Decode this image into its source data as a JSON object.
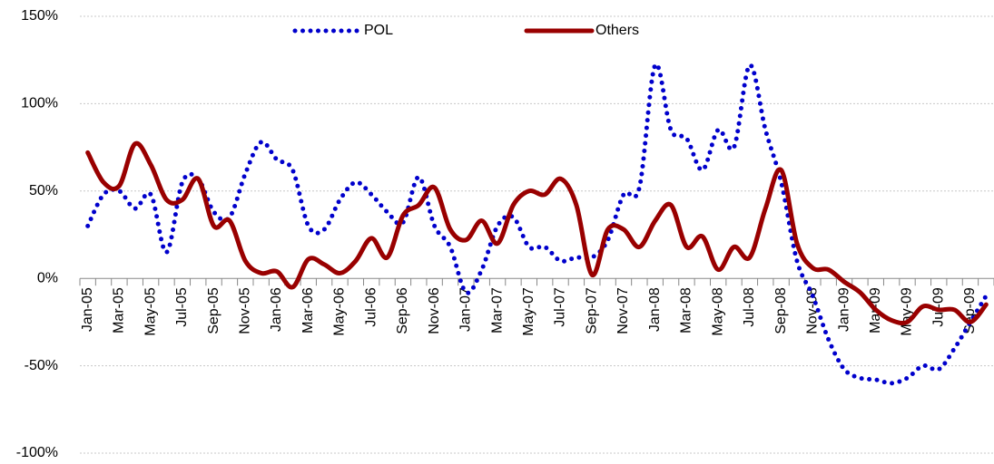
{
  "chart_data": {
    "type": "line",
    "categories": [
      "Jan-05",
      null,
      "Mar-05",
      null,
      "May-05",
      null,
      "Jul-05",
      null,
      "Sep-05",
      null,
      "Nov-05",
      null,
      "Jan-06",
      null,
      "Mar-06",
      null,
      "May-06",
      null,
      "Jul-06",
      null,
      "Sep-06",
      null,
      "Nov-06",
      null,
      "Jan-07",
      null,
      "Mar-07",
      null,
      "May-07",
      null,
      "Jul-07",
      null,
      "Sep-07",
      null,
      "Nov-07",
      null,
      "Jan-08",
      null,
      "Mar-08",
      null,
      "May-08",
      null,
      "Jul-08",
      null,
      "Sep-08",
      null,
      "Nov-08",
      null,
      "Jan-09",
      null,
      "Mar-09",
      null,
      "May-09",
      null,
      "Jul-09",
      null,
      "Sep-09",
      null
    ],
    "series": [
      {
        "name": "POL",
        "color": "#0000cc",
        "style": "dotted",
        "values": [
          30,
          48,
          50,
          40,
          48,
          15,
          55,
          57,
          38,
          35,
          60,
          78,
          68,
          62,
          30,
          28,
          45,
          55,
          48,
          38,
          32,
          58,
          30,
          18,
          -8,
          5,
          30,
          35,
          18,
          18,
          10,
          12,
          12,
          22,
          48,
          52,
          122,
          85,
          80,
          62,
          85,
          75,
          122,
          85,
          55,
          10,
          -10,
          -35,
          -52,
          -57,
          -58,
          -60,
          -57,
          -50,
          -52,
          -40,
          -25,
          -10
        ]
      },
      {
        "name": "Others",
        "color": "#990000",
        "style": "solid",
        "values": [
          72,
          55,
          53,
          77,
          65,
          45,
          45,
          57,
          30,
          33,
          10,
          3,
          4,
          -5,
          11,
          8,
          3,
          10,
          23,
          12,
          36,
          42,
          52,
          28,
          22,
          33,
          20,
          42,
          50,
          48,
          57,
          42,
          2,
          28,
          28,
          18,
          33,
          42,
          18,
          24,
          5,
          18,
          12,
          40,
          62,
          20,
          6,
          5,
          -2,
          -8,
          -18,
          -24,
          -25,
          -16,
          -18,
          -18,
          -25,
          -15
        ]
      }
    ],
    "ylim": [
      -100,
      150
    ],
    "yticks": [
      {
        "value": -100,
        "label": "-100%"
      },
      {
        "value": -50,
        "label": "-50%"
      },
      {
        "value": 0,
        "label": "0%"
      },
      {
        "value": 50,
        "label": "50%"
      },
      {
        "value": 100,
        "label": "100%"
      },
      {
        "value": 150,
        "label": "150%"
      }
    ],
    "grid": true,
    "legend": "top"
  }
}
